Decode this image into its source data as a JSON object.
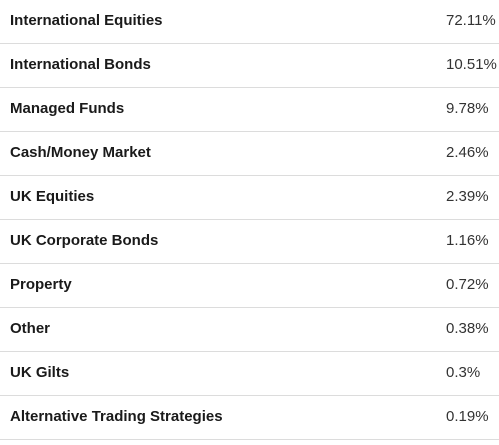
{
  "allocation": {
    "rows": [
      {
        "name": "International Equities",
        "value": "72.11%"
      },
      {
        "name": "International Bonds",
        "value": "10.51%"
      },
      {
        "name": "Managed Funds",
        "value": "9.78%"
      },
      {
        "name": "Cash/Money Market",
        "value": "2.46%"
      },
      {
        "name": "UK Equities",
        "value": "2.39%"
      },
      {
        "name": "UK Corporate Bonds",
        "value": "1.16%"
      },
      {
        "name": "Property",
        "value": "0.72%"
      },
      {
        "name": "Other",
        "value": "0.38%"
      },
      {
        "name": "UK Gilts",
        "value": "0.3%"
      },
      {
        "name": "Alternative Trading Strategies",
        "value": "0.19%"
      }
    ]
  }
}
